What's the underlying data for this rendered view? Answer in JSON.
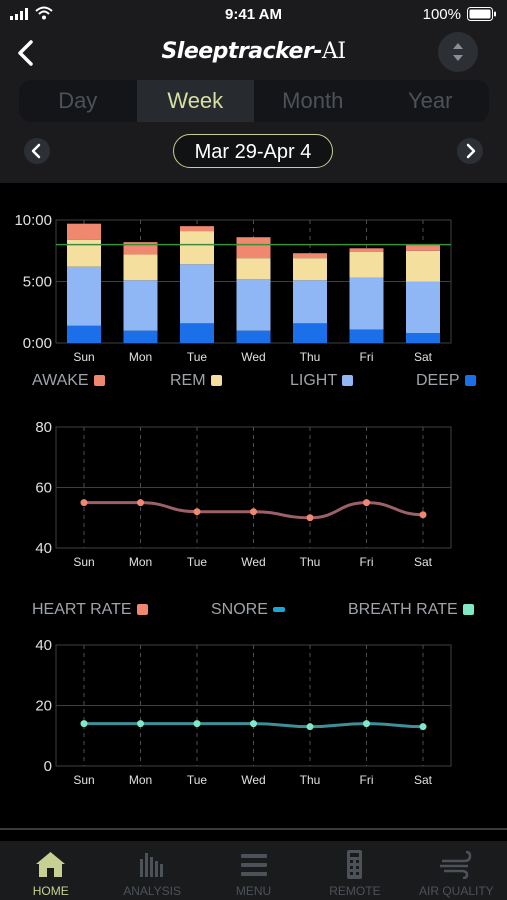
{
  "status_bar": {
    "time": "9:41 AM",
    "battery": "100%"
  },
  "header": {
    "title_main": "Sleeptracker",
    "title_suffix": "AI",
    "tabs": [
      "Day",
      "Week",
      "Month",
      "Year"
    ],
    "active_tab": "Week",
    "date_range": "Mar 29-Apr 4"
  },
  "legends": {
    "sleep": [
      {
        "label": "AWAKE",
        "color": "#f08870"
      },
      {
        "label": "REM",
        "color": "#f5df9e"
      },
      {
        "label": "LIGHT",
        "color": "#8fb6f5"
      },
      {
        "label": "DEEP",
        "color": "#1b6fe8"
      }
    ],
    "vitals": [
      {
        "label": "HEART RATE",
        "color": "#f08870"
      },
      {
        "label": "SNORE",
        "color": "#1aa7d8"
      },
      {
        "label": "BREATH RATE",
        "color": "#7fe8c6"
      }
    ]
  },
  "chart_data": [
    {
      "type": "bar",
      "stacked": true,
      "categories": [
        "Sun",
        "Mon",
        "Tue",
        "Wed",
        "Thu",
        "Fri",
        "Sat"
      ],
      "y_ticks": [
        "0:00",
        "5:00",
        "10:00"
      ],
      "ylim": [
        0,
        10
      ],
      "target_line": 8.0,
      "series": [
        {
          "name": "DEEP",
          "color": "#1b6fe8",
          "values": [
            1.4,
            1.0,
            1.6,
            1.0,
            1.6,
            1.1,
            0.8
          ]
        },
        {
          "name": "LIGHT",
          "color": "#8fb6f5",
          "values": [
            4.8,
            4.1,
            4.8,
            4.2,
            3.5,
            4.2,
            4.2
          ]
        },
        {
          "name": "REM",
          "color": "#f5df9e",
          "values": [
            2.2,
            2.1,
            2.7,
            1.7,
            1.8,
            2.1,
            2.5
          ]
        },
        {
          "name": "AWAKE",
          "color": "#f08870",
          "values": [
            1.3,
            1.0,
            0.4,
            1.7,
            0.4,
            0.3,
            0.5
          ]
        }
      ]
    },
    {
      "type": "line",
      "name": "HEART RATE",
      "x": [
        "Sun",
        "Mon",
        "Tue",
        "Wed",
        "Thu",
        "Fri",
        "Sat"
      ],
      "y_ticks": [
        "40",
        "60",
        "80"
      ],
      "ylim": [
        40,
        80
      ],
      "values": [
        55,
        55,
        52,
        52,
        50,
        55,
        51
      ],
      "point_color": "#f08870",
      "line_color": "#9c6068"
    },
    {
      "type": "line",
      "name": "BREATH RATE",
      "x": [
        "Sun",
        "Mon",
        "Tue",
        "Wed",
        "Thu",
        "Fri",
        "Sat"
      ],
      "y_ticks": [
        "0",
        "20",
        "40"
      ],
      "ylim": [
        0,
        40
      ],
      "values": [
        14,
        14,
        14,
        14,
        13,
        14,
        13
      ],
      "point_color": "#7fe8c6",
      "line_color": "#3f8f98"
    }
  ],
  "tabbar": [
    {
      "label": "HOME",
      "icon": "home-icon",
      "active": true
    },
    {
      "label": "ANALYSIS",
      "icon": "bar-chart-icon",
      "active": false
    },
    {
      "label": "MENU",
      "icon": "menu-icon",
      "active": false
    },
    {
      "label": "REMOTE",
      "icon": "remote-icon",
      "active": false
    },
    {
      "label": "AIR QUALITY",
      "icon": "wind-icon",
      "active": false
    }
  ]
}
